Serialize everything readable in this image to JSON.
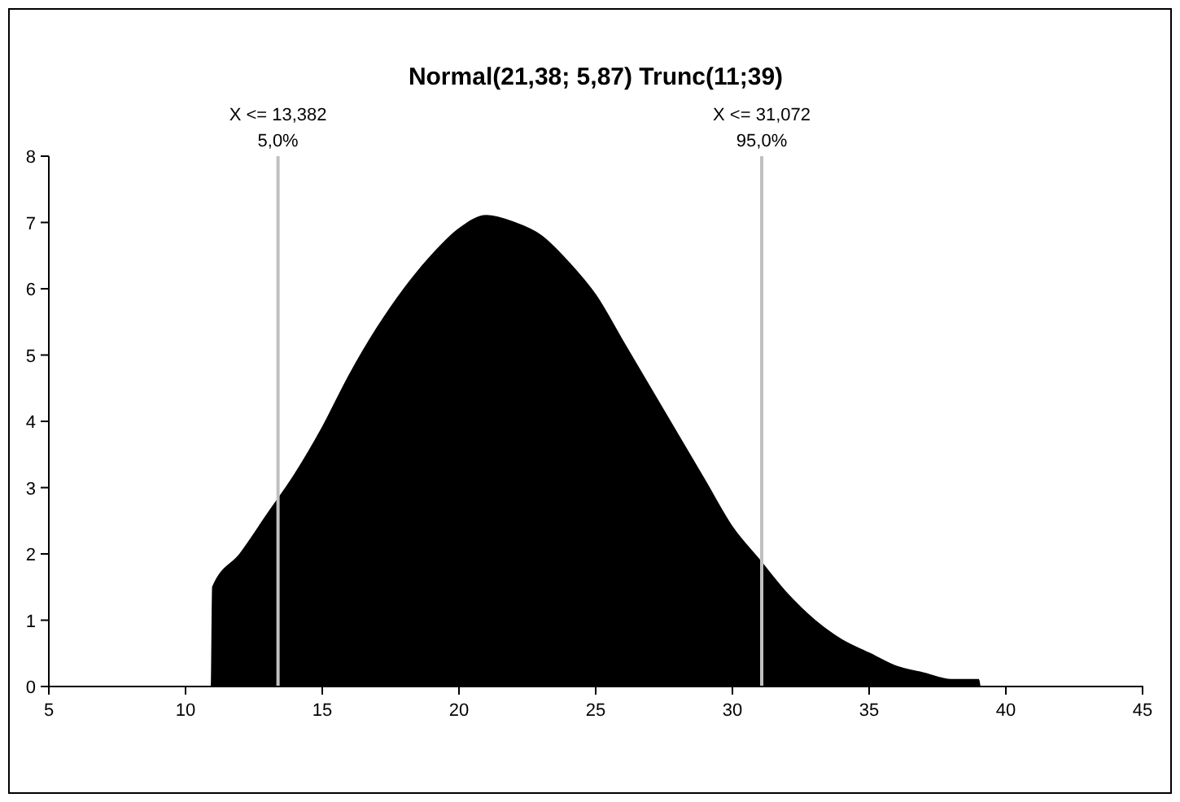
{
  "chart_data": {
    "type": "area",
    "title": "Normal(21,38; 5,87) Trunc(11;39)",
    "x": [
      5,
      10.95,
      11,
      12,
      13,
      14,
      15,
      16,
      17,
      18,
      19,
      20,
      21,
      22,
      23,
      24,
      25,
      26,
      27,
      28,
      29,
      30,
      31,
      32,
      33,
      34,
      35,
      36,
      37,
      38,
      39,
      39.05,
      45
    ],
    "series": [
      {
        "color": "#000000",
        "values": [
          0,
          0,
          1.5,
          2.0,
          2.6,
          3.2,
          3.9,
          4.7,
          5.4,
          6.0,
          6.5,
          6.9,
          7.1,
          7.0,
          6.8,
          6.4,
          5.9,
          5.2,
          4.5,
          3.8,
          3.1,
          2.4,
          1.9,
          1.4,
          1.0,
          0.7,
          0.5,
          0.3,
          0.2,
          0.1,
          0.1,
          0,
          0
        ]
      }
    ],
    "xlim": [
      5,
      45
    ],
    "xticks": [
      5,
      10,
      15,
      20,
      25,
      30,
      35,
      40,
      45
    ],
    "ylim": [
      0,
      8
    ],
    "yticks": [
      0,
      1,
      2,
      3,
      4,
      5,
      6,
      7,
      8
    ],
    "grid": false,
    "ref_lines": [
      {
        "axis": "x",
        "value": 13.382,
        "label": "X <= 13,382\n5,0%",
        "color": "#c0c0c0"
      },
      {
        "axis": "x",
        "value": 31.072,
        "label": "X <= 31,072\n95,0%",
        "color": "#c0c0c0"
      }
    ]
  }
}
